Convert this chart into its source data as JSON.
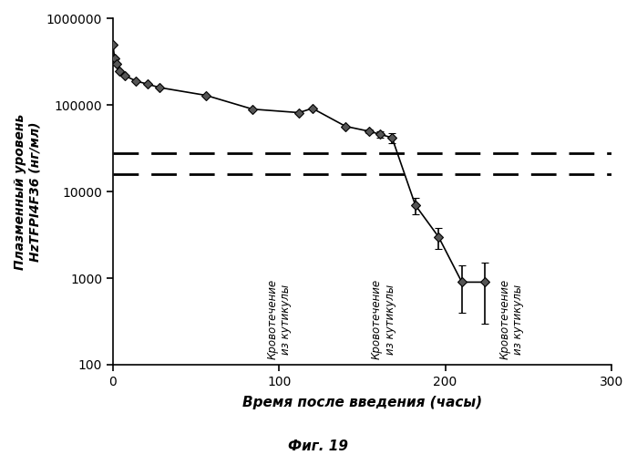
{
  "x": [
    0,
    1,
    2,
    4,
    7,
    14,
    21,
    28,
    56,
    84,
    112,
    120,
    140,
    154,
    161,
    168,
    182,
    196,
    210,
    224
  ],
  "y": [
    500000,
    350000,
    300000,
    250000,
    220000,
    190000,
    175000,
    160000,
    130000,
    90000,
    82000,
    92000,
    57000,
    50000,
    46000,
    42000,
    7000,
    3000,
    900,
    900
  ],
  "y_err_low": [
    0,
    0,
    0,
    0,
    0,
    0,
    0,
    0,
    0,
    0,
    0,
    0,
    0,
    3000,
    4000,
    6000,
    1500,
    800,
    500,
    600
  ],
  "y_err_high": [
    0,
    0,
    0,
    0,
    0,
    0,
    0,
    0,
    0,
    0,
    0,
    0,
    0,
    3000,
    4000,
    6000,
    1500,
    800,
    500,
    600
  ],
  "dashed_line1": 28000,
  "dashed_line2": 16000,
  "xlim": [
    0,
    300
  ],
  "ylim": [
    100,
    1000000
  ],
  "xlabel": "Время после введения (часы)",
  "ylabel_line1": "Плазменный уровень",
  "ylabel_line2": "HzTFPI4F36 (нг/мл)",
  "caption": "Фиг. 19",
  "ann1_x": 100,
  "ann1_text": "Кровотечение\nиз кутикулы",
  "ann2_x": 163,
  "ann2_text": "Кровотечение\nиз кутикулы",
  "ann3_x": 240,
  "ann3_text": "Кровотечение\nиз кутикулы",
  "yticks": [
    100,
    1000,
    10000,
    100000,
    1000000
  ],
  "ytick_labels": [
    "100",
    "1000",
    "10000",
    "100000",
    "1000000"
  ],
  "xticks": [
    0,
    100,
    200,
    300
  ]
}
